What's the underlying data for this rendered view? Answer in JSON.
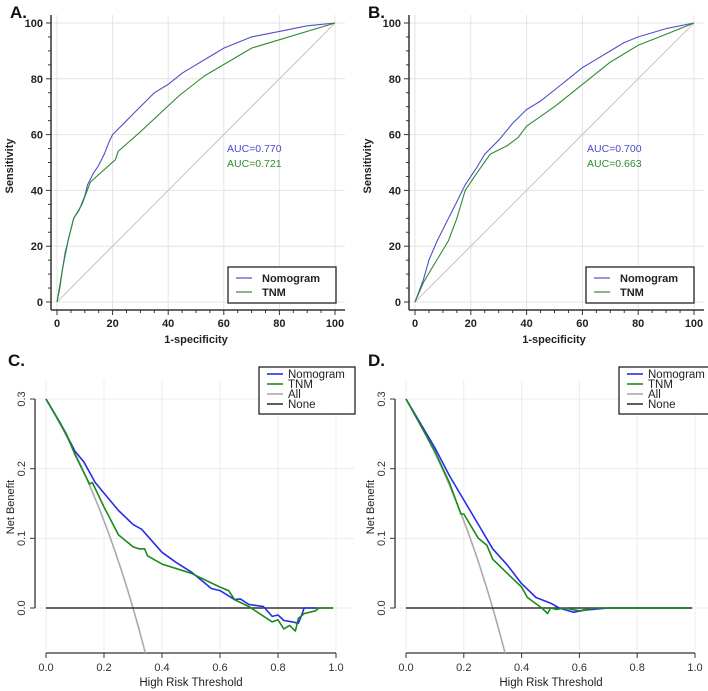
{
  "chart_data": [
    {
      "panel": "A.",
      "type": "line",
      "style": "roc",
      "xlabel": "1-specificity",
      "ylabel": "Sensitivity",
      "xlim": [
        0,
        100
      ],
      "ylim": [
        0,
        100
      ],
      "xticks": [
        0,
        20,
        40,
        60,
        80,
        100
      ],
      "yticks": [
        0,
        20,
        40,
        60,
        80,
        100
      ],
      "grid": true,
      "legend_position": "bottom-right",
      "annotations": [
        {
          "text": "AUC=0.770",
          "color": "#4b4bc8"
        },
        {
          "text": "AUC=0.721",
          "color": "#2e8b2e"
        }
      ],
      "series": [
        {
          "name": "Nomogram",
          "color": "#5050c8",
          "points": [
            [
              0,
              0
            ],
            [
              1,
              5
            ],
            [
              2,
              12
            ],
            [
              3,
              18
            ],
            [
              4,
              22
            ],
            [
              5,
              26
            ],
            [
              6,
              30
            ],
            [
              8,
              33
            ],
            [
              10,
              38
            ],
            [
              11,
              42
            ],
            [
              13,
              46
            ],
            [
              15,
              49
            ],
            [
              17,
              53
            ],
            [
              19,
              58
            ],
            [
              20,
              60
            ],
            [
              22,
              62
            ],
            [
              25,
              65
            ],
            [
              28,
              68
            ],
            [
              32,
              72
            ],
            [
              35,
              75
            ],
            [
              40,
              78
            ],
            [
              45,
              82
            ],
            [
              50,
              85
            ],
            [
              55,
              88
            ],
            [
              60,
              91
            ],
            [
              65,
              93
            ],
            [
              70,
              95
            ],
            [
              75,
              96
            ],
            [
              80,
              97
            ],
            [
              90,
              99
            ],
            [
              100,
              100
            ]
          ]
        },
        {
          "name": "TNM",
          "color": "#2e8b2e",
          "points": [
            [
              0,
              0
            ],
            [
              2,
              12
            ],
            [
              4,
              22
            ],
            [
              6,
              30
            ],
            [
              9,
              35
            ],
            [
              12,
              43
            ],
            [
              21,
              51
            ],
            [
              22,
              54
            ],
            [
              30,
              61
            ],
            [
              44,
              74
            ],
            [
              53,
              81
            ],
            [
              70,
              91
            ],
            [
              100,
              100
            ]
          ]
        },
        {
          "name": "reference",
          "color": "#d8c0c0",
          "legend": false,
          "points": [
            [
              0,
              0
            ],
            [
              100,
              100
            ]
          ]
        }
      ]
    },
    {
      "panel": "B.",
      "type": "line",
      "style": "roc",
      "xlabel": "1-specificity",
      "ylabel": "Sensitivity",
      "xlim": [
        0,
        100
      ],
      "ylim": [
        0,
        100
      ],
      "xticks": [
        0,
        20,
        40,
        60,
        80,
        100
      ],
      "yticks": [
        0,
        20,
        40,
        60,
        80,
        100
      ],
      "grid": true,
      "legend_position": "bottom-right",
      "annotations": [
        {
          "text": "AUC=0.700",
          "color": "#4b4bc8"
        },
        {
          "text": "AUC=0.663",
          "color": "#2e8b2e"
        }
      ],
      "series": [
        {
          "name": "Nomogram",
          "color": "#5050c8",
          "points": [
            [
              0,
              0
            ],
            [
              3,
              8
            ],
            [
              5,
              15
            ],
            [
              8,
              22
            ],
            [
              12,
              30
            ],
            [
              15,
              36
            ],
            [
              18,
              42
            ],
            [
              22,
              48
            ],
            [
              25,
              53
            ],
            [
              30,
              58
            ],
            [
              35,
              64
            ],
            [
              40,
              69
            ],
            [
              45,
              72
            ],
            [
              50,
              76
            ],
            [
              55,
              80
            ],
            [
              60,
              84
            ],
            [
              65,
              87
            ],
            [
              70,
              90
            ],
            [
              75,
              93
            ],
            [
              80,
              95
            ],
            [
              90,
              98
            ],
            [
              100,
              100
            ]
          ]
        },
        {
          "name": "TNM",
          "color": "#2e8b2e",
          "points": [
            [
              0,
              0
            ],
            [
              3,
              7
            ],
            [
              6,
              12
            ],
            [
              9,
              17
            ],
            [
              12,
              22
            ],
            [
              15,
              30
            ],
            [
              18,
              40
            ],
            [
              22,
              46
            ],
            [
              27,
              53
            ],
            [
              33,
              56
            ],
            [
              37,
              59
            ],
            [
              40,
              63
            ],
            [
              50,
              70
            ],
            [
              60,
              78
            ],
            [
              65,
              82
            ],
            [
              70,
              86
            ],
            [
              80,
              92
            ],
            [
              90,
              96
            ],
            [
              100,
              100
            ]
          ]
        },
        {
          "name": "reference",
          "color": "#d8c0c0",
          "legend": false,
          "points": [
            [
              0,
              0
            ],
            [
              100,
              100
            ]
          ]
        }
      ]
    },
    {
      "panel": "C.",
      "type": "line",
      "style": "dca",
      "xlabel": "High Risk Threshold",
      "ylabel": "Net Benefit",
      "xlim": [
        0,
        1
      ],
      "ylim": [
        -0.065,
        0.3
      ],
      "xticks": [
        "0.0",
        "0.2",
        "0.4",
        "0.6",
        "0.8",
        "1.0"
      ],
      "yticks": [
        "0.0",
        "0.1",
        "0.2",
        "0.3"
      ],
      "grid": true,
      "legend_position": "top-right",
      "series": [
        {
          "name": "Nomogram",
          "color": "#2b2bea",
          "points": [
            [
              0,
              0.3
            ],
            [
              0.05,
              0.265
            ],
            [
              0.1,
              0.225
            ],
            [
              0.13,
              0.21
            ],
            [
              0.17,
              0.18
            ],
            [
              0.2,
              0.165
            ],
            [
              0.25,
              0.14
            ],
            [
              0.3,
              0.12
            ],
            [
              0.33,
              0.113
            ],
            [
              0.4,
              0.08
            ],
            [
              0.45,
              0.065
            ],
            [
              0.5,
              0.052
            ],
            [
              0.55,
              0.035
            ],
            [
              0.57,
              0.028
            ],
            [
              0.6,
              0.025
            ],
            [
              0.65,
              0.012
            ],
            [
              0.67,
              0.013
            ],
            [
              0.7,
              0.005
            ],
            [
              0.75,
              0.002
            ],
            [
              0.78,
              -0.012
            ],
            [
              0.8,
              -0.01
            ],
            [
              0.82,
              -0.018
            ],
            [
              0.85,
              -0.02
            ],
            [
              0.87,
              -0.022
            ],
            [
              0.88,
              -0.012
            ],
            [
              0.89,
              0
            ],
            [
              0.92,
              0
            ],
            [
              0.93,
              0
            ]
          ]
        },
        {
          "name": "TNM",
          "color": "#1a8a1a",
          "points": [
            [
              0,
              0.3
            ],
            [
              0.07,
              0.25
            ],
            [
              0.1,
              0.22
            ],
            [
              0.15,
              0.178
            ],
            [
              0.16,
              0.18
            ],
            [
              0.2,
              0.145
            ],
            [
              0.25,
              0.105
            ],
            [
              0.3,
              0.088
            ],
            [
              0.32,
              0.085
            ],
            [
              0.34,
              0.085
            ],
            [
              0.35,
              0.075
            ],
            [
              0.4,
              0.063
            ],
            [
              0.5,
              0.05
            ],
            [
              0.6,
              0.03
            ],
            [
              0.63,
              0.025
            ],
            [
              0.65,
              0.012
            ],
            [
              0.7,
              0.002
            ],
            [
              0.78,
              -0.02
            ],
            [
              0.8,
              -0.017
            ],
            [
              0.82,
              -0.03
            ],
            [
              0.84,
              -0.025
            ],
            [
              0.86,
              -0.033
            ],
            [
              0.87,
              -0.015
            ],
            [
              0.89,
              -0.008
            ],
            [
              0.93,
              -0.004
            ],
            [
              0.94,
              0
            ],
            [
              0.99,
              0
            ]
          ]
        },
        {
          "name": "All",
          "color": "#aaaaaa",
          "prevalence": 0.3
        },
        {
          "name": "None",
          "color": "#333333",
          "points": [
            [
              0,
              0
            ],
            [
              0.99,
              0
            ]
          ]
        }
      ]
    },
    {
      "panel": "D.",
      "type": "line",
      "style": "dca",
      "xlabel": "High Risk Threshold",
      "ylabel": "Net Benefit",
      "xlim": [
        0,
        1
      ],
      "ylim": [
        -0.065,
        0.3
      ],
      "xticks": [
        "0.0",
        "0.2",
        "0.4",
        "0.6",
        "0.8",
        "1.0"
      ],
      "yticks": [
        "0.0",
        "0.1",
        "0.2",
        "0.3"
      ],
      "grid": true,
      "legend_position": "top-right",
      "series": [
        {
          "name": "Nomogram",
          "color": "#2b2bea",
          "points": [
            [
              0,
              0.3
            ],
            [
              0.1,
              0.23
            ],
            [
              0.15,
              0.19
            ],
            [
              0.2,
              0.155
            ],
            [
              0.25,
              0.12
            ],
            [
              0.3,
              0.085
            ],
            [
              0.35,
              0.062
            ],
            [
              0.4,
              0.035
            ],
            [
              0.45,
              0.015
            ],
            [
              0.5,
              0.007
            ],
            [
              0.53,
              0
            ],
            [
              0.58,
              -0.006
            ],
            [
              0.62,
              -0.003
            ],
            [
              0.7,
              0
            ],
            [
              0.99,
              0
            ]
          ]
        },
        {
          "name": "TNM",
          "color": "#1a8a1a",
          "points": [
            [
              0,
              0.3
            ],
            [
              0.1,
              0.225
            ],
            [
              0.15,
              0.18
            ],
            [
              0.19,
              0.135
            ],
            [
              0.2,
              0.135
            ],
            [
              0.25,
              0.1
            ],
            [
              0.28,
              0.09
            ],
            [
              0.3,
              0.07
            ],
            [
              0.35,
              0.05
            ],
            [
              0.4,
              0.03
            ],
            [
              0.42,
              0.015
            ],
            [
              0.47,
              0
            ],
            [
              0.49,
              -0.008
            ],
            [
              0.5,
              0
            ],
            [
              0.52,
              -0.002
            ],
            [
              0.55,
              0
            ],
            [
              0.6,
              -0.004
            ],
            [
              0.65,
              0
            ],
            [
              0.99,
              0
            ]
          ]
        },
        {
          "name": "All",
          "color": "#aaaaaa",
          "prevalence": 0.3
        },
        {
          "name": "None",
          "color": "#333333",
          "points": [
            [
              0,
              0
            ],
            [
              0.99,
              0
            ]
          ]
        }
      ]
    }
  ]
}
